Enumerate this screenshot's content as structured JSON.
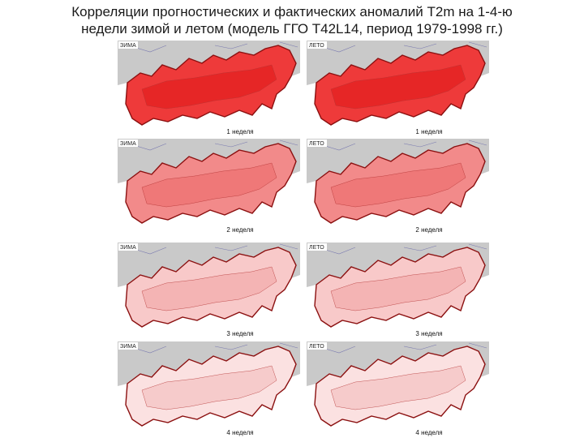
{
  "title_lines": [
    "Корреляции прогностических и фактических аномалий T2m на 1-4-ю",
    "недели зимой и летом (модель ГГО T42L14, период 1979-1998 гг.)"
  ],
  "panels": [
    {
      "season": "ЗИМА",
      "week": "1 неделя"
    },
    {
      "season": "ЛЕТО",
      "week": "1 неделя"
    },
    {
      "season": "ЗИМА",
      "week": "2 неделя"
    },
    {
      "season": "ЛЕТО",
      "week": "2 неделя"
    },
    {
      "season": "ЗИМА",
      "week": "3 неделя"
    },
    {
      "season": "ЛЕТО",
      "week": "3 неделя"
    },
    {
      "season": "ЗИМА",
      "week": "4 неделя"
    },
    {
      "season": "ЛЕТО",
      "week": "4 неделя"
    }
  ]
}
